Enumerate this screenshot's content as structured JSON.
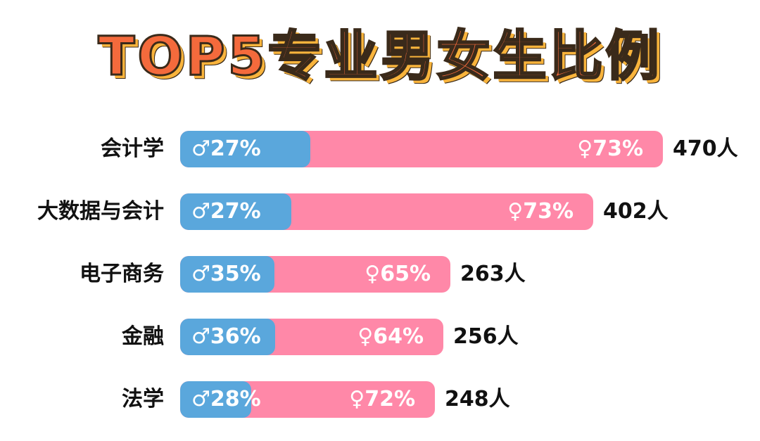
{
  "chart_data": {
    "type": "bar",
    "title": "TOP5专业男女生比例",
    "male_symbol": "♂",
    "female_symbol": "♀",
    "total_unit": "人",
    "categories": [
      "会计学",
      "大数据与会计",
      "电子商务",
      "金融",
      "法学"
    ],
    "series": [
      {
        "name": "",
        "values": [
          27,
          27,
          35,
          36,
          28
        ],
        "color": "#5aa7dc"
      },
      {
        "name": "",
        "values": [
          73,
          73,
          65,
          64,
          72
        ],
        "color": "#ff88a8"
      }
    ],
    "totals": [
      470,
      402,
      263,
      256,
      248
    ],
    "value_suffix": "%"
  }
}
